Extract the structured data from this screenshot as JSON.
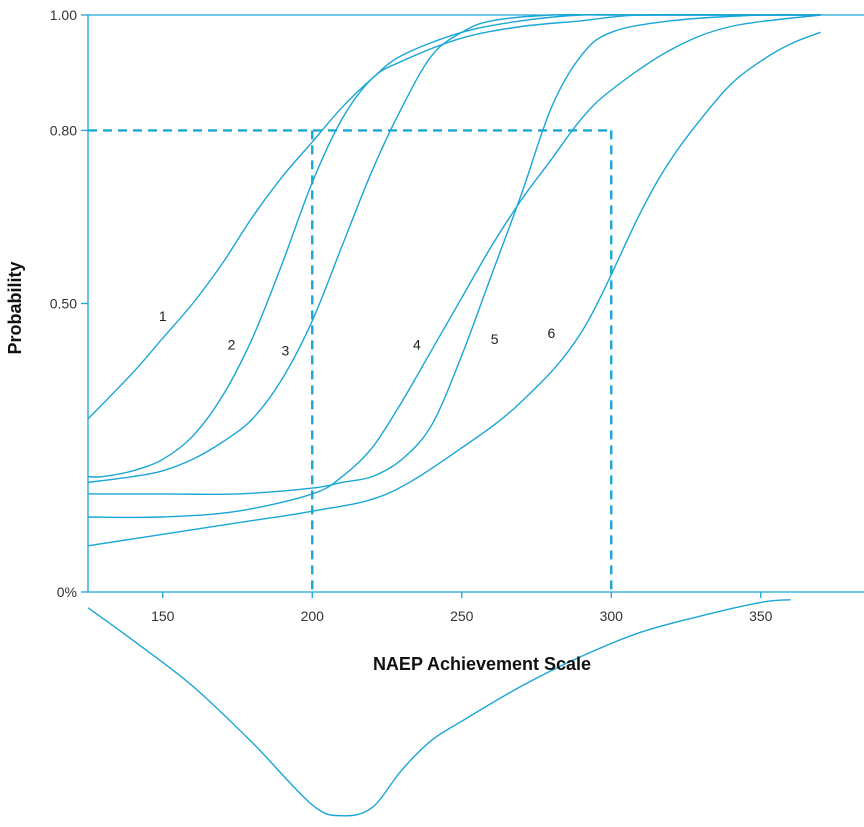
{
  "chart_data": {
    "type": "line",
    "xlabel": "NAEP Achievement Scale",
    "ylabel": "Probability",
    "xlim": [
      125,
      370
    ],
    "ylim": [
      0,
      1
    ],
    "x_ticks": [
      150,
      200,
      250,
      300,
      350
    ],
    "y_ticks": [
      {
        "value": 0,
        "label": "0%"
      },
      {
        "value": 0.5,
        "label": "0.50"
      },
      {
        "value": 0.8,
        "label": "0.80"
      },
      {
        "value": 1,
        "label": "1.00"
      }
    ],
    "grid": false,
    "line_color": "#1aa6d6",
    "reference_box": {
      "x_from": 200,
      "x_to": 300,
      "y": 0.8
    },
    "series": [
      {
        "name": "1",
        "label_at": [
          150,
          0.47
        ],
        "x": [
          125,
          140,
          150,
          160,
          170,
          180,
          190,
          200,
          210,
          220,
          230,
          250,
          270,
          290,
          310,
          350,
          370
        ],
        "y": [
          0.3,
          0.38,
          0.44,
          0.5,
          0.57,
          0.65,
          0.72,
          0.78,
          0.84,
          0.89,
          0.93,
          0.97,
          0.99,
          1,
          1,
          1,
          1
        ]
      },
      {
        "name": "2",
        "label_at": [
          173,
          0.42
        ],
        "x": [
          125,
          130,
          140,
          150,
          160,
          170,
          180,
          190,
          200,
          210,
          220,
          230,
          250,
          270,
          290,
          310,
          350,
          370
        ],
        "y": [
          0.2,
          0.2,
          0.21,
          0.23,
          0.27,
          0.34,
          0.44,
          0.57,
          0.71,
          0.82,
          0.89,
          0.92,
          0.96,
          0.98,
          0.99,
          1,
          1,
          1
        ]
      },
      {
        "name": "3",
        "label_at": [
          191,
          0.41
        ],
        "x": [
          125,
          140,
          150,
          160,
          170,
          180,
          190,
          200,
          210,
          220,
          230,
          240,
          250,
          260,
          280,
          300,
          350,
          370
        ],
        "y": [
          0.19,
          0.2,
          0.21,
          0.23,
          0.26,
          0.3,
          0.37,
          0.47,
          0.6,
          0.73,
          0.84,
          0.93,
          0.97,
          0.99,
          1,
          1,
          1,
          1
        ]
      },
      {
        "name": "4",
        "label_at": [
          235,
          0.42
        ],
        "x": [
          125,
          150,
          175,
          200,
          210,
          220,
          230,
          240,
          250,
          260,
          270,
          280,
          290,
          300,
          320,
          350,
          370
        ],
        "y": [
          0.17,
          0.17,
          0.17,
          0.18,
          0.19,
          0.2,
          0.23,
          0.29,
          0.41,
          0.55,
          0.69,
          0.84,
          0.93,
          0.97,
          0.99,
          1,
          1
        ]
      },
      {
        "name": "5",
        "label_at": [
          261,
          0.43
        ],
        "x": [
          125,
          150,
          175,
          200,
          210,
          220,
          230,
          240,
          250,
          260,
          270,
          280,
          290,
          300,
          320,
          340,
          370
        ],
        "y": [
          0.13,
          0.13,
          0.14,
          0.17,
          0.2,
          0.25,
          0.33,
          0.42,
          0.51,
          0.6,
          0.68,
          0.75,
          0.82,
          0.87,
          0.94,
          0.98,
          1
        ]
      },
      {
        "name": "6",
        "label_at": [
          280,
          0.44
        ],
        "x": [
          125,
          150,
          175,
          200,
          225,
          250,
          270,
          290,
          310,
          320,
          330,
          340,
          350,
          360,
          370
        ],
        "y": [
          0.08,
          0.1,
          0.12,
          0.14,
          0.17,
          0.25,
          0.33,
          0.45,
          0.66,
          0.75,
          0.82,
          0.88,
          0.92,
          0.95,
          0.97
        ]
      }
    ],
    "distribution": {
      "x": [
        125,
        140,
        160,
        180,
        200,
        210,
        220,
        230,
        240,
        250,
        270,
        290,
        310,
        330,
        350,
        360
      ],
      "y": [
        0.04,
        0.16,
        0.33,
        0.54,
        0.77,
        0.81,
        0.78,
        0.64,
        0.53,
        0.46,
        0.33,
        0.22,
        0.13,
        0.07,
        0.02,
        0.01
      ]
    }
  }
}
